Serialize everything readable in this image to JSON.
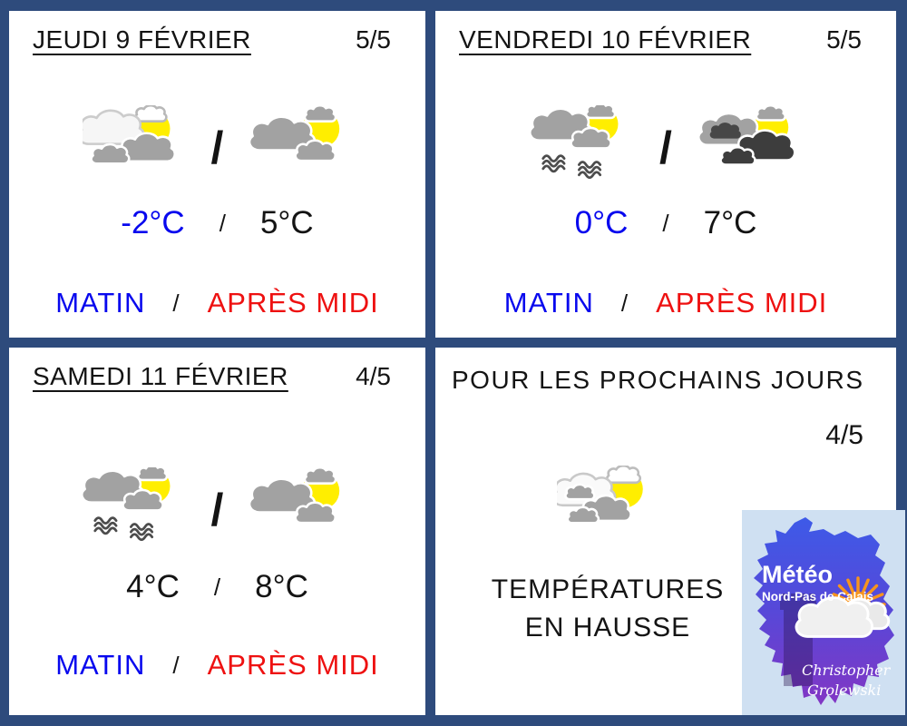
{
  "ui": {
    "slash": "/"
  },
  "colors": {
    "frame_navy": "#2e4b7c",
    "morning_blue": "#0808ee",
    "afternoon_red": "#ee1111",
    "ink": "#141414",
    "sun_yellow": "#ffee00",
    "cloud_gray": "#a2a2a2",
    "cloud_dark": "#3d3d3d"
  },
  "panels": [
    {
      "title": "JEUDI 9 FÉVRIER",
      "score": "5/5",
      "morning_icon": "sun-white-gray-clouds",
      "afternoon_icon": "sun-gray-clouds",
      "morning_temp": "-2°C",
      "afternoon_temp": "5°C",
      "morning_temp_color": "#0808ee",
      "afternoon_temp_color": "#141414",
      "morning_label": "MATIN",
      "afternoon_label": "APRÈS MIDI"
    },
    {
      "title": "VENDREDI 10 FÉVRIER",
      "score": "5/5",
      "morning_icon": "sun-gray-clouds-fog",
      "afternoon_icon": "sun-dark-clouds",
      "morning_temp": "0°C",
      "afternoon_temp": "7°C",
      "morning_temp_color": "#0808ee",
      "afternoon_temp_color": "#141414",
      "morning_label": "MATIN",
      "afternoon_label": "APRÈS MIDI"
    },
    {
      "title": "SAMEDI 11 FÉVRIER",
      "score": "4/5",
      "morning_icon": "sun-gray-clouds-fog",
      "afternoon_icon": "sun-gray-clouds",
      "morning_temp": "4°C",
      "afternoon_temp": "8°C",
      "morning_temp_color": "#141414",
      "afternoon_temp_color": "#141414",
      "morning_label": "MATIN",
      "afternoon_label": "APRÈS MIDI"
    }
  ],
  "outlook": {
    "title": "POUR LES PROCHAINS JOURS",
    "score": "4/5",
    "icon": "sun-light-clouds",
    "message_line1": "TEMPÉRATURES",
    "message_line2": "EN HAUSSE"
  },
  "logo": {
    "brand": "Météo",
    "region": "Nord-Pas de Calais",
    "signature_line1": "Christopher",
    "signature_line2": "Grolewski"
  }
}
